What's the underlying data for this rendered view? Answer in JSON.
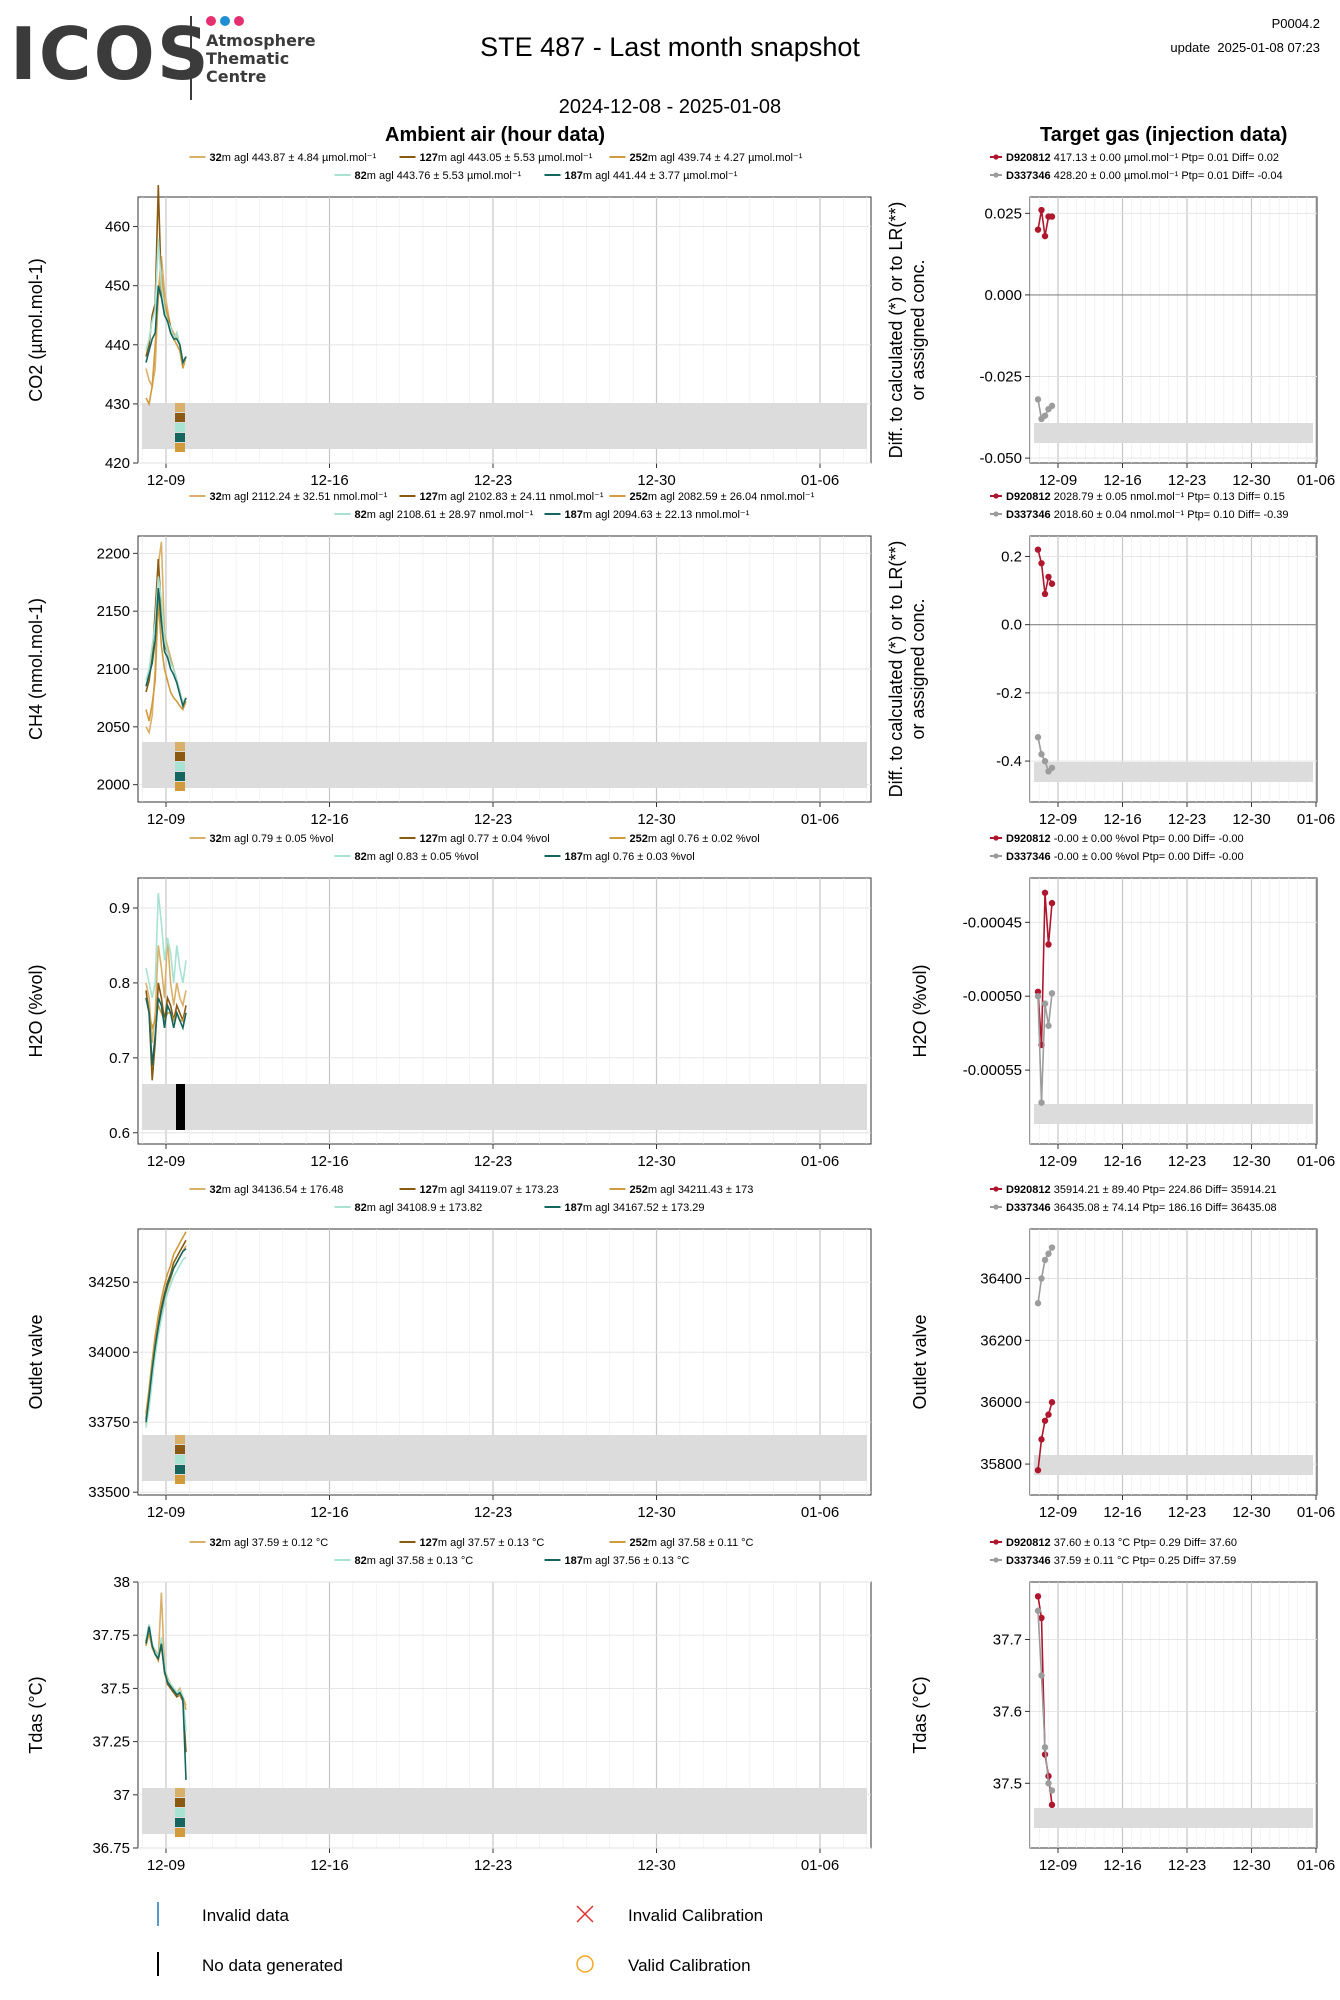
{
  "header": {
    "logo_text": "ICOS",
    "logo_subtitle": "Atmosphere\nThematic\nCentre",
    "logo_dot_colors": [
      "#e4306f",
      "#1e8fd5",
      "#e4306f"
    ],
    "title": "STE 487 - Last month snapshot",
    "date_range": "2024-12-08 - 2025-01-08",
    "page_code": "P0004.2",
    "update_text": "update  2025-01-08 07:23"
  },
  "sections": {
    "ambient_title": "Ambient air (hour data)",
    "target_title": "Target gas (injection data)"
  },
  "colors": {
    "32m": "#d9b06a",
    "127m": "#8a5a12",
    "252m": "#d19a3c",
    "82m": "#a8e2d2",
    "187m": "#14665e",
    "D920812": "#b0162e",
    "D337346": "#9c9c9c",
    "band": "#dcdcdc",
    "invalid_data": "#1f77b4",
    "invalid_cal": "#e03030",
    "valid_cal": "#f5a623"
  },
  "legend": {
    "invalid_data": "Invalid data",
    "no_data": "No data generated",
    "invalid_cal": "Invalid Calibration",
    "valid_cal": "Valid Calibration"
  },
  "chart_data": [
    {
      "type": "line",
      "panel": "ambient",
      "ylabel": "CO2 (µmol.mol-1)",
      "ylim": [
        420,
        465
      ],
      "yticks": [
        420,
        430,
        440,
        450,
        460
      ],
      "xticks": [
        "12-09",
        "12-16",
        "12-23",
        "12-30",
        "01-06"
      ],
      "legend": [
        [
          "32",
          "m agl 443.87 ± 4.84 µmol.mol⁻¹"
        ],
        [
          "127",
          "m agl 443.05 ± 5.53 µmol.mol⁻¹"
        ],
        [
          "252",
          "m agl 439.74 ± 4.27 µmol.mol⁻¹"
        ],
        [
          "82",
          "m agl 443.76 ± 5.53 µmol.mol⁻¹"
        ],
        [
          "187",
          "m agl 441.44 ± 3.77 µmol.mol⁻¹"
        ]
      ],
      "series": [
        {
          "name": "32",
          "values": [
            436,
            434,
            433,
            436,
            449,
            455,
            449,
            446,
            443,
            442,
            441,
            440,
            437,
            438
          ]
        },
        {
          "name": "127",
          "values": [
            438,
            440,
            445,
            447,
            467,
            449,
            446,
            445,
            443,
            441,
            442,
            440,
            437,
            438
          ]
        },
        {
          "name": "252",
          "values": [
            431,
            430,
            433,
            440,
            448,
            452,
            447,
            445,
            442,
            441,
            440,
            439,
            436,
            438
          ]
        },
        {
          "name": "82",
          "values": [
            439,
            441,
            444,
            446,
            458,
            450,
            446,
            444,
            443,
            441,
            442,
            440,
            437,
            438
          ]
        },
        {
          "name": "187",
          "values": [
            437,
            439,
            441,
            442,
            450,
            448,
            445,
            444,
            442,
            441,
            441,
            440,
            437,
            438
          ]
        }
      ]
    },
    {
      "type": "line",
      "panel": "ambient",
      "ylabel": "CH4 (nmol.mol-1)",
      "ylim": [
        1985,
        2215
      ],
      "yticks": [
        2000,
        2050,
        2100,
        2150,
        2200
      ],
      "xticks": [
        "12-09",
        "12-16",
        "12-23",
        "12-30",
        "01-06"
      ],
      "legend": [
        [
          "32",
          "m agl 2112.24 ± 32.51 nmol.mol⁻¹"
        ],
        [
          "127",
          "m agl 2102.83 ± 24.11 nmol.mol⁻¹"
        ],
        [
          "252",
          "m agl 2082.59 ± 26.04 nmol.mol⁻¹"
        ],
        [
          "82",
          "m agl 2108.61 ± 28.97 nmol.mol⁻¹"
        ],
        [
          "187",
          "m agl 2094.63 ± 22.13 nmol.mol⁻¹"
        ]
      ],
      "series": [
        {
          "name": "32",
          "values": [
            2050,
            2045,
            2060,
            2100,
            2190,
            2210,
            2130,
            2120,
            2110,
            2100,
            2090,
            2080,
            2070,
            2075
          ]
        },
        {
          "name": "127",
          "values": [
            2080,
            2090,
            2110,
            2150,
            2195,
            2150,
            2120,
            2115,
            2105,
            2100,
            2090,
            2080,
            2070,
            2075
          ]
        },
        {
          "name": "252",
          "values": [
            2065,
            2055,
            2070,
            2090,
            2160,
            2120,
            2100,
            2090,
            2080,
            2075,
            2072,
            2068,
            2065,
            2072
          ]
        },
        {
          "name": "82",
          "values": [
            2090,
            2100,
            2120,
            2140,
            2180,
            2160,
            2125,
            2115,
            2105,
            2100,
            2090,
            2080,
            2070,
            2075
          ]
        },
        {
          "name": "187",
          "values": [
            2085,
            2095,
            2105,
            2125,
            2170,
            2140,
            2115,
            2110,
            2100,
            2095,
            2088,
            2078,
            2068,
            2075
          ]
        }
      ]
    },
    {
      "type": "line",
      "panel": "ambient",
      "ylabel": "H2O (%vol)",
      "ylim": [
        0.585,
        0.94
      ],
      "yticks": [
        0.6,
        0.7,
        0.8,
        0.9
      ],
      "xticks": [
        "12-09",
        "12-16",
        "12-23",
        "12-30",
        "01-06"
      ],
      "legend": [
        [
          "32",
          "m agl 0.79 ± 0.05 %vol"
        ],
        [
          "127",
          "m agl 0.77 ± 0.04 %vol"
        ],
        [
          "252",
          "m agl 0.76 ± 0.02 %vol"
        ],
        [
          "82",
          "m agl 0.83 ± 0.05 %vol"
        ],
        [
          "187",
          "m agl 0.76 ± 0.03 %vol"
        ]
      ],
      "series": [
        {
          "name": "32",
          "values": [
            0.8,
            0.78,
            0.72,
            0.76,
            0.85,
            0.82,
            0.78,
            0.86,
            0.8,
            0.77,
            0.8,
            0.78,
            0.77,
            0.79
          ]
        },
        {
          "name": "127",
          "values": [
            0.79,
            0.76,
            0.67,
            0.72,
            0.8,
            0.78,
            0.75,
            0.78,
            0.77,
            0.75,
            0.77,
            0.76,
            0.75,
            0.77
          ]
        },
        {
          "name": "252",
          "values": [
            0.78,
            0.76,
            0.74,
            0.75,
            0.77,
            0.76,
            0.75,
            0.76,
            0.76,
            0.75,
            0.76,
            0.75,
            0.75,
            0.76
          ]
        },
        {
          "name": "82",
          "values": [
            0.82,
            0.8,
            0.78,
            0.8,
            0.92,
            0.88,
            0.83,
            0.86,
            0.84,
            0.8,
            0.85,
            0.82,
            0.8,
            0.83
          ]
        },
        {
          "name": "187",
          "values": [
            0.78,
            0.76,
            0.69,
            0.73,
            0.78,
            0.77,
            0.74,
            0.77,
            0.76,
            0.74,
            0.76,
            0.75,
            0.74,
            0.76
          ]
        }
      ]
    },
    {
      "type": "line",
      "panel": "ambient",
      "ylabel": "Outlet valve",
      "ylim": [
        33490,
        34440
      ],
      "yticks": [
        33500,
        33750,
        34000,
        34250
      ],
      "xticks": [
        "12-09",
        "12-16",
        "12-23",
        "12-30",
        "01-06"
      ],
      "legend": [
        [
          "32",
          "m agl 34136.54 ± 176.48"
        ],
        [
          "127",
          "m agl 34119.07 ± 173.23"
        ],
        [
          "252",
          "m agl 34211.43 ± 173"
        ],
        [
          "82",
          "m agl 34108.9 ± 173.82"
        ],
        [
          "187",
          "m agl 34167.52 ± 173.29"
        ]
      ],
      "series": [
        {
          "name": "32",
          "values": [
            33740,
            33830,
            33930,
            34010,
            34080,
            34140,
            34190,
            34230,
            34260,
            34300,
            34320,
            34340,
            34360,
            34380
          ]
        },
        {
          "name": "127",
          "values": [
            33760,
            33850,
            33950,
            34030,
            34100,
            34160,
            34210,
            34250,
            34280,
            34320,
            34340,
            34360,
            34380,
            34400
          ]
        },
        {
          "name": "252",
          "values": [
            33780,
            33870,
            33970,
            34060,
            34130,
            34190,
            34240,
            34280,
            34310,
            34350,
            34370,
            34390,
            34410,
            34430
          ]
        },
        {
          "name": "82",
          "values": [
            33730,
            33800,
            33900,
            33990,
            34060,
            34120,
            34170,
            34210,
            34240,
            34270,
            34290,
            34310,
            34330,
            34340
          ]
        },
        {
          "name": "187",
          "values": [
            33750,
            33840,
            33940,
            34020,
            34090,
            34150,
            34200,
            34240,
            34270,
            34300,
            34320,
            34340,
            34360,
            34370
          ]
        }
      ]
    },
    {
      "type": "line",
      "panel": "ambient",
      "ylabel": "Tdas (°C)",
      "ylim": [
        36.75,
        38.0
      ],
      "yticks": [
        36.75,
        37.0,
        37.25,
        37.5,
        37.75,
        38.0
      ],
      "xticks": [
        "12-09",
        "12-16",
        "12-23",
        "12-30",
        "01-06"
      ],
      "legend": [
        [
          "32",
          "m agl 37.59 ± 0.12 °C"
        ],
        [
          "127",
          "m agl 37.57 ± 0.13 °C"
        ],
        [
          "252",
          "m agl 37.58 ± 0.11 °C"
        ],
        [
          "82",
          "m agl 37.58 ± 0.13 °C"
        ],
        [
          "187",
          "m agl 37.56 ± 0.13 °C"
        ]
      ],
      "series": [
        {
          "name": "32",
          "values": [
            37.7,
            37.78,
            37.7,
            37.68,
            37.65,
            37.95,
            37.6,
            37.55,
            37.52,
            37.5,
            37.48,
            37.5,
            37.46,
            37.42
          ]
        },
        {
          "name": "127",
          "values": [
            37.72,
            37.8,
            37.7,
            37.66,
            37.64,
            37.7,
            37.58,
            37.52,
            37.5,
            37.48,
            37.46,
            37.47,
            37.44,
            37.2
          ]
        },
        {
          "name": "252",
          "values": [
            37.7,
            37.76,
            37.69,
            37.66,
            37.63,
            37.72,
            37.57,
            37.53,
            37.51,
            37.49,
            37.47,
            37.47,
            37.45,
            37.4
          ]
        },
        {
          "name": "82",
          "values": [
            37.73,
            37.8,
            37.71,
            37.67,
            37.65,
            37.74,
            37.6,
            37.54,
            37.52,
            37.5,
            37.48,
            37.49,
            37.46,
            37.3
          ]
        },
        {
          "name": "187",
          "values": [
            37.71,
            37.79,
            37.7,
            37.66,
            37.64,
            37.71,
            37.58,
            37.53,
            37.51,
            37.49,
            37.47,
            37.48,
            37.45,
            37.07
          ]
        }
      ]
    },
    {
      "type": "line",
      "panel": "target",
      "ylabel": "Diff. to calculated (*) or to LR(**)\nor assigned conc.",
      "ylim": [
        -0.0515,
        0.03
      ],
      "yticks": [
        -0.05,
        -0.025,
        0.0,
        0.025
      ],
      "ytick_labels": [
        "-0.050",
        "-0.025",
        "0.000",
        "0.025"
      ],
      "xticks": [
        "12-09",
        "12-16",
        "12-23",
        "12-30",
        "01-06"
      ],
      "legend": [
        [
          "D920812",
          " 417.13 ± 0.00 µmol.mol⁻¹ Ptp= 0.01 Diff= 0.02"
        ],
        [
          "D337346",
          " 428.20 ± 0.00 µmol.mol⁻¹ Ptp= 0.01 Diff= -0.04"
        ]
      ],
      "series": [
        {
          "name": "D920812",
          "values": [
            0.02,
            0.026,
            0.018,
            0.024,
            0.024
          ]
        },
        {
          "name": "D337346",
          "values": [
            -0.032,
            -0.038,
            -0.037,
            -0.035,
            -0.034
          ]
        }
      ]
    },
    {
      "type": "line",
      "panel": "target",
      "ylabel": "Diff. to calculated (*) or to LR(**)\nor assigned conc.",
      "ylim": [
        -0.52,
        0.26
      ],
      "yticks": [
        -0.4,
        -0.2,
        0.0,
        0.2
      ],
      "ytick_labels": [
        "-0.4",
        "-0.2",
        "0.0",
        "0.2"
      ],
      "xticks": [
        "12-09",
        "12-16",
        "12-23",
        "12-30",
        "01-06"
      ],
      "legend": [
        [
          "D920812",
          " 2028.79 ± 0.05 nmol.mol⁻¹ Ptp= 0.13 Diff= 0.15"
        ],
        [
          "D337346",
          " 2018.60 ± 0.04 nmol.mol⁻¹ Ptp= 0.10 Diff= -0.39"
        ]
      ],
      "series": [
        {
          "name": "D920812",
          "values": [
            0.22,
            0.18,
            0.09,
            0.14,
            0.12
          ]
        },
        {
          "name": "D337346",
          "values": [
            -0.33,
            -0.38,
            -0.4,
            -0.43,
            -0.42
          ]
        }
      ]
    },
    {
      "type": "line",
      "panel": "target",
      "ylabel": "H2O (%vol)",
      "ylim": [
        -0.0006,
        -0.00042
      ],
      "yticks": [
        -0.00055,
        -0.0005,
        -0.00045
      ],
      "ytick_labels": [
        "-0.00055",
        "-0.00050",
        "-0.00045"
      ],
      "xticks": [
        "12-09",
        "12-16",
        "12-23",
        "12-30",
        "01-06"
      ],
      "legend": [
        [
          "D920812",
          " -0.00 ± 0.00 %vol Ptp= 0.00 Diff= -0.00"
        ],
        [
          "D337346",
          " -0.00 ± 0.00 %vol Ptp= 0.00 Diff= -0.00"
        ]
      ],
      "series": [
        {
          "name": "D920812",
          "values": [
            -0.000497,
            -0.000533,
            -0.00043,
            -0.000465,
            -0.000437
          ]
        },
        {
          "name": "D337346",
          "values": [
            -0.0005,
            -0.000572,
            -0.000505,
            -0.00052,
            -0.000498
          ]
        }
      ]
    },
    {
      "type": "line",
      "panel": "target",
      "ylabel": "Outlet valve",
      "ylim": [
        35700,
        36560
      ],
      "yticks": [
        35800,
        36000,
        36200,
        36400
      ],
      "xticks": [
        "12-09",
        "12-16",
        "12-23",
        "12-30",
        "01-06"
      ],
      "legend": [
        [
          "D920812",
          " 35914.21 ± 89.40  Ptp= 224.86 Diff= 35914.21"
        ],
        [
          "D337346",
          " 36435.08 ± 74.14  Ptp= 186.16 Diff= 36435.08"
        ]
      ],
      "series": [
        {
          "name": "D920812",
          "values": [
            35780,
            35880,
            35940,
            35960,
            36000
          ]
        },
        {
          "name": "D337346",
          "values": [
            36320,
            36400,
            36460,
            36480,
            36500
          ]
        }
      ]
    },
    {
      "type": "line",
      "panel": "target",
      "ylabel": "Tdas (°C)",
      "ylim": [
        37.41,
        37.78
      ],
      "yticks": [
        37.5,
        37.6,
        37.7
      ],
      "ytick_labels": [
        "37.5",
        "37.6",
        "37.7"
      ],
      "xticks": [
        "12-09",
        "12-16",
        "12-23",
        "12-30",
        "01-06"
      ],
      "legend": [
        [
          "D920812",
          " 37.60 ± 0.13 °C Ptp= 0.29 Diff= 37.60"
        ],
        [
          "D337346",
          " 37.59 ± 0.11 °C Ptp= 0.25 Diff= 37.59"
        ]
      ],
      "series": [
        {
          "name": "D920812",
          "values": [
            37.76,
            37.73,
            37.54,
            37.51,
            37.47
          ]
        },
        {
          "name": "D337346",
          "values": [
            37.74,
            37.65,
            37.55,
            37.5,
            37.49
          ]
        }
      ]
    }
  ]
}
